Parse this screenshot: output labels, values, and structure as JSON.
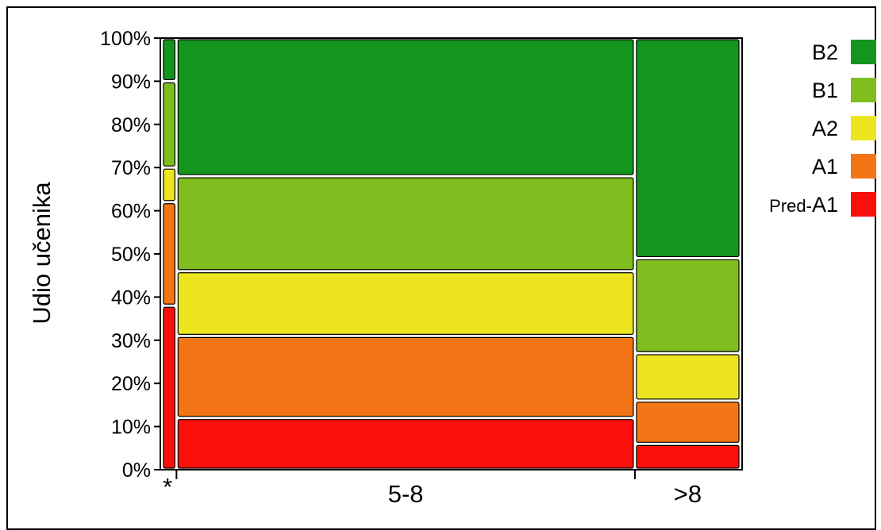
{
  "chart_data": {
    "type": "mosaic",
    "ylabel": "Udio učenika",
    "ylim": [
      0,
      100
    ],
    "y_ticks": [
      "0%",
      "10%",
      "20%",
      "30%",
      "40%",
      "50%",
      "60%",
      "70%",
      "80%",
      "90%",
      "100%"
    ],
    "categories": [
      "*",
      "5-8",
      ">8"
    ],
    "column_share": [
      2,
      80,
      18
    ],
    "legend": [
      {
        "name": "B2",
        "color": "#14951e"
      },
      {
        "name": "B1",
        "color": "#80bd1e"
      },
      {
        "name": "A2",
        "color": "#ede520"
      },
      {
        "name": "A1",
        "color": "#f47515"
      },
      {
        "name_prefix": "Pred-",
        "name": "A1",
        "color": "#fb0f0a"
      }
    ],
    "series": [
      {
        "name": "Pred-A1",
        "values": [
          38,
          12,
          6
        ]
      },
      {
        "name": "A1",
        "values": [
          24,
          19,
          10
        ]
      },
      {
        "name": "A2",
        "values": [
          8,
          15,
          11
        ]
      },
      {
        "name": "B1",
        "values": [
          20,
          22,
          22
        ]
      },
      {
        "name": "B2",
        "values": [
          10,
          32,
          51
        ]
      }
    ]
  }
}
